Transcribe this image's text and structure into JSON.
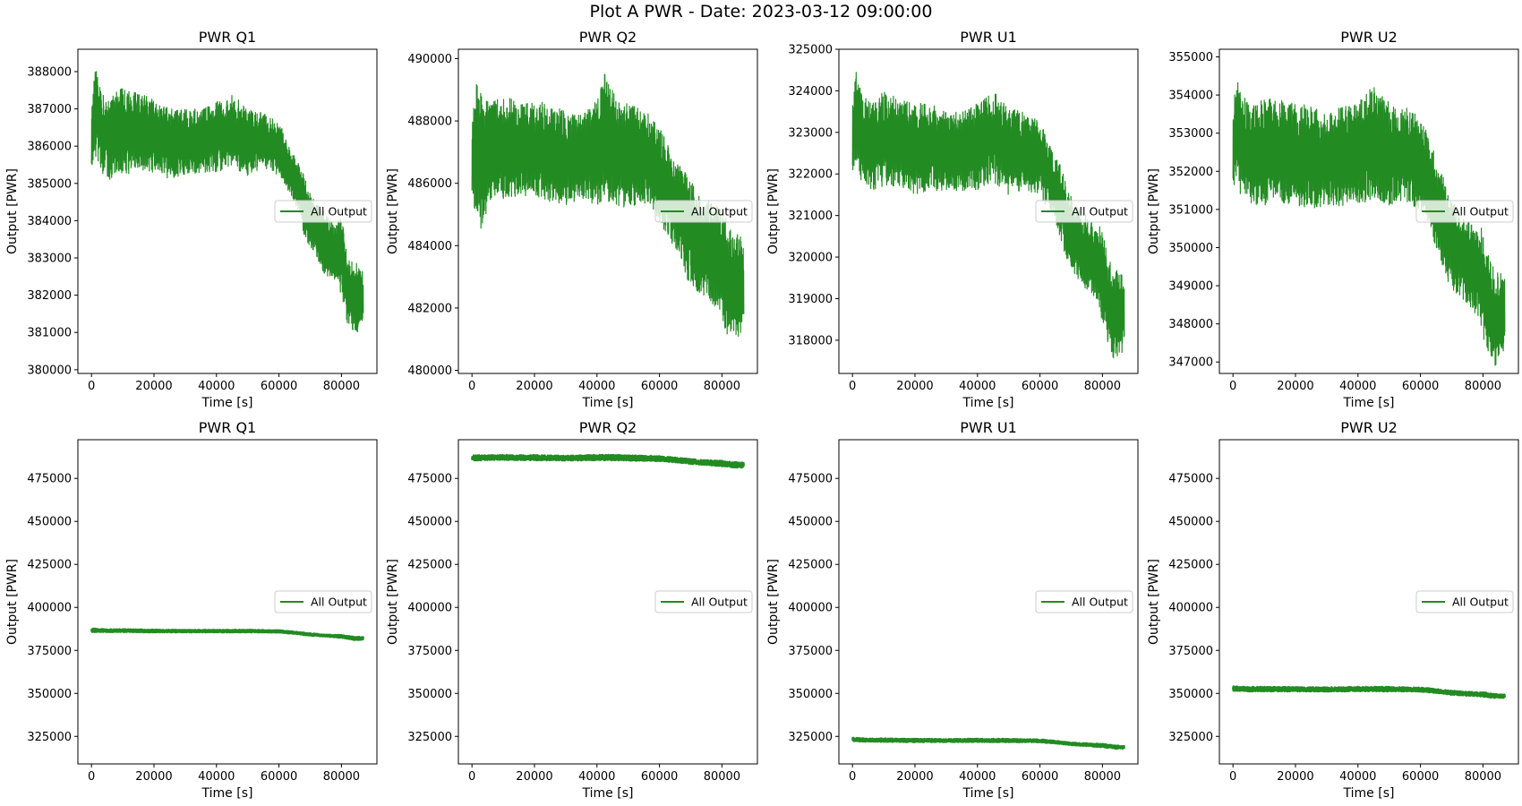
{
  "figure": {
    "suptitle": "Plot A PWR - Date: 2023-03-12 09:00:00",
    "line_color": "#228b22"
  },
  "chart_data": [
    {
      "type": "line",
      "title": "PWR Q1",
      "xlabel": "Time [s]",
      "ylabel": "Output [PWR]",
      "legend": {
        "label": "All Output",
        "placement": "center-right"
      },
      "xlim": [
        -4350,
        91350
      ],
      "ylim": [
        379900,
        388600
      ],
      "xticks": [
        0,
        20000,
        40000,
        60000,
        80000
      ],
      "yticks": [
        380000,
        381000,
        382000,
        383000,
        384000,
        385000,
        386000,
        387000,
        388000
      ],
      "series": [
        {
          "label": "All Output",
          "x": [
            0,
            1000,
            3000,
            6000,
            10000,
            15000,
            20000,
            25000,
            30000,
            35000,
            40000,
            45000,
            50000,
            55000,
            60000,
            63000,
            66000,
            69000,
            72000,
            75000,
            78000,
            80000,
            82000,
            84000,
            86000,
            87000
          ],
          "lower": [
            385400,
            385700,
            385300,
            385100,
            385200,
            385300,
            385300,
            385100,
            385200,
            385300,
            385300,
            385400,
            385200,
            385400,
            385200,
            384800,
            384300,
            383300,
            383000,
            382500,
            382400,
            382000,
            381200,
            381000,
            381000,
            381500
          ],
          "upper": [
            386900,
            388200,
            387500,
            387300,
            387600,
            387400,
            387300,
            387000,
            387000,
            387000,
            387200,
            387400,
            387000,
            386900,
            386700,
            386000,
            385600,
            385000,
            384500,
            384200,
            383900,
            384200,
            383000,
            382900,
            382800,
            382600
          ]
        }
      ]
    },
    {
      "type": "line",
      "title": "PWR Q2",
      "xlabel": "Time [s]",
      "ylabel": "Output [PWR]",
      "legend": {
        "label": "All Output",
        "placement": "center-right"
      },
      "xlim": [
        -4350,
        91350
      ],
      "ylim": [
        479900,
        490300
      ],
      "xticks": [
        0,
        20000,
        40000,
        60000,
        80000
      ],
      "yticks": [
        480000,
        482000,
        484000,
        486000,
        488000,
        490000
      ],
      "series": [
        {
          "label": "All Output",
          "x": [
            0,
            1000,
            3000,
            6000,
            10000,
            15000,
            20000,
            25000,
            30000,
            35000,
            40000,
            42000,
            45000,
            50000,
            55000,
            60000,
            63000,
            66000,
            69000,
            72000,
            75000,
            78000,
            80000,
            82000,
            84000,
            86000,
            87000
          ],
          "lower": [
            485500,
            485000,
            484500,
            485500,
            485500,
            485600,
            485600,
            485400,
            485300,
            485500,
            485300,
            485400,
            485400,
            485100,
            485400,
            484800,
            484200,
            483700,
            482900,
            482500,
            482300,
            482000,
            481600,
            481000,
            481000,
            481000,
            481600
          ],
          "upper": [
            488000,
            489300,
            489000,
            488600,
            488800,
            488700,
            488600,
            488600,
            488300,
            488200,
            488700,
            489600,
            489000,
            488600,
            488400,
            487800,
            487200,
            486600,
            486300,
            485700,
            485500,
            485300,
            485300,
            484600,
            484400,
            484300,
            484000
          ]
        }
      ]
    },
    {
      "type": "line",
      "title": "PWR U1",
      "xlabel": "Time [s]",
      "ylabel": "Output [PWR]",
      "legend": {
        "label": "All Output",
        "placement": "center-right"
      },
      "xlim": [
        -4350,
        91350
      ],
      "ylim": [
        317200,
        325000
      ],
      "xticks": [
        0,
        20000,
        40000,
        60000,
        80000
      ],
      "yticks": [
        318000,
        319000,
        320000,
        321000,
        322000,
        323000,
        324000,
        325000
      ],
      "series": [
        {
          "label": "All Output",
          "x": [
            0,
            1000,
            3000,
            6000,
            10000,
            15000,
            20000,
            25000,
            30000,
            35000,
            40000,
            45000,
            50000,
            55000,
            60000,
            63000,
            66000,
            69000,
            72000,
            75000,
            78000,
            80000,
            82000,
            84000,
            86000,
            87000
          ],
          "lower": [
            322000,
            322200,
            321800,
            321600,
            321700,
            321700,
            321500,
            321600,
            321600,
            321600,
            321600,
            321800,
            321500,
            321600,
            321500,
            321100,
            320600,
            319800,
            319500,
            319200,
            319000,
            318400,
            317800,
            317500,
            317600,
            317900
          ],
          "upper": [
            323600,
            324500,
            323900,
            323700,
            324000,
            323800,
            323700,
            323700,
            323500,
            323500,
            323700,
            324000,
            323600,
            323500,
            323300,
            322700,
            322300,
            321700,
            321200,
            321000,
            320700,
            320800,
            320000,
            319700,
            319700,
            319200
          ]
        }
      ]
    },
    {
      "type": "line",
      "title": "PWR U2",
      "xlabel": "Time [s]",
      "ylabel": "Output [PWR]",
      "legend": {
        "label": "All Output",
        "placement": "center-right"
      },
      "xlim": [
        -4350,
        91350
      ],
      "ylim": [
        346700,
        355200
      ],
      "xticks": [
        0,
        20000,
        40000,
        60000,
        80000
      ],
      "yticks": [
        347000,
        348000,
        349000,
        350000,
        351000,
        352000,
        353000,
        354000,
        355000
      ],
      "series": [
        {
          "label": "All Output",
          "x": [
            0,
            1000,
            3000,
            6000,
            10000,
            15000,
            20000,
            25000,
            30000,
            35000,
            40000,
            45000,
            50000,
            55000,
            60000,
            63000,
            66000,
            69000,
            72000,
            75000,
            78000,
            80000,
            82000,
            84000,
            86000,
            87000
          ],
          "lower": [
            351500,
            351700,
            351200,
            351100,
            351100,
            351200,
            351100,
            351000,
            351100,
            351100,
            351100,
            351300,
            351100,
            351200,
            351000,
            350400,
            349800,
            349000,
            348700,
            348400,
            348200,
            347600,
            347100,
            346900,
            347000,
            347400
          ],
          "upper": [
            353500,
            354600,
            354000,
            353700,
            353900,
            353900,
            353800,
            353700,
            353500,
            353700,
            353800,
            354300,
            353800,
            353700,
            353500,
            352800,
            352200,
            351400,
            351000,
            350800,
            350500,
            350600,
            349700,
            349400,
            349400,
            349200
          ]
        }
      ]
    },
    {
      "type": "line",
      "title": "PWR Q1",
      "xlabel": "Time [s]",
      "ylabel": "Output [PWR]",
      "legend": {
        "label": "All Output",
        "placement": "center-right"
      },
      "xlim": [
        -4350,
        91350
      ],
      "ylim": [
        309000,
        497500
      ],
      "xticks": [
        0,
        20000,
        40000,
        60000,
        80000
      ],
      "yticks": [
        325000,
        350000,
        375000,
        400000,
        425000,
        450000,
        475000
      ],
      "series": [
        {
          "label": "All Output",
          "x": [
            0,
            5000,
            10000,
            20000,
            30000,
            40000,
            50000,
            60000,
            65000,
            70000,
            75000,
            80000,
            84000,
            87000
          ],
          "lower": [
            385600,
            385600,
            385600,
            385400,
            385400,
            385400,
            385400,
            385300,
            384500,
            383500,
            382900,
            382300,
            381000,
            381000
          ],
          "upper": [
            387800,
            387300,
            387400,
            387100,
            387000,
            387000,
            387100,
            386800,
            386000,
            385000,
            384300,
            384000,
            383000,
            382800
          ]
        }
      ]
    },
    {
      "type": "line",
      "title": "PWR Q2",
      "xlabel": "Time [s]",
      "ylabel": "Output [PWR]",
      "legend": {
        "label": "All Output",
        "placement": "center-right"
      },
      "xlim": [
        -4350,
        91350
      ],
      "ylim": [
        309000,
        497500
      ],
      "xticks": [
        0,
        20000,
        40000,
        60000,
        80000
      ],
      "yticks": [
        325000,
        350000,
        375000,
        400000,
        425000,
        450000,
        475000
      ],
      "series": [
        {
          "label": "All Output",
          "x": [
            0,
            5000,
            10000,
            20000,
            30000,
            40000,
            50000,
            60000,
            65000,
            70000,
            75000,
            80000,
            84000,
            87000
          ],
          "lower": [
            485200,
            485600,
            485600,
            485500,
            485300,
            485500,
            485300,
            485000,
            484200,
            483400,
            482700,
            482000,
            481200,
            481300
          ],
          "upper": [
            488500,
            488600,
            488700,
            488600,
            488300,
            488800,
            488600,
            488000,
            487200,
            486300,
            485700,
            485300,
            484500,
            484200
          ]
        }
      ]
    },
    {
      "type": "line",
      "title": "PWR U1",
      "xlabel": "Time [s]",
      "ylabel": "Output [PWR]",
      "legend": {
        "label": "All Output",
        "placement": "center-right"
      },
      "xlim": [
        -4350,
        91350
      ],
      "ylim": [
        309000,
        497500
      ],
      "xticks": [
        0,
        20000,
        40000,
        60000,
        80000
      ],
      "yticks": [
        325000,
        350000,
        375000,
        400000,
        425000,
        450000,
        475000
      ],
      "series": [
        {
          "label": "All Output",
          "x": [
            0,
            5000,
            10000,
            20000,
            30000,
            40000,
            50000,
            60000,
            65000,
            70000,
            75000,
            80000,
            84000,
            87000
          ],
          "lower": [
            322200,
            321800,
            321800,
            321600,
            321600,
            321700,
            321600,
            321500,
            320800,
            319800,
            319300,
            318700,
            317800,
            317800
          ],
          "upper": [
            324300,
            323800,
            323900,
            323700,
            323500,
            323700,
            323600,
            323300,
            322500,
            321500,
            321000,
            320700,
            319800,
            319500
          ]
        }
      ]
    },
    {
      "type": "line",
      "title": "PWR U2",
      "xlabel": "Time [s]",
      "ylabel": "Output [PWR]",
      "legend": {
        "label": "All Output",
        "placement": "center-right"
      },
      "xlim": [
        -4350,
        91350
      ],
      "ylim": [
        309000,
        497500
      ],
      "xticks": [
        0,
        20000,
        40000,
        60000,
        80000
      ],
      "yticks": [
        325000,
        350000,
        375000,
        400000,
        425000,
        450000,
        475000
      ],
      "series": [
        {
          "label": "All Output",
          "x": [
            0,
            5000,
            10000,
            20000,
            30000,
            40000,
            50000,
            60000,
            65000,
            70000,
            75000,
            80000,
            84000,
            87000
          ],
          "lower": [
            351400,
            351100,
            351100,
            351100,
            351000,
            351200,
            351100,
            351000,
            350100,
            349100,
            348600,
            348000,
            347200,
            347300
          ],
          "upper": [
            354200,
            353800,
            353900,
            353700,
            353600,
            353900,
            353800,
            353500,
            352600,
            351600,
            351000,
            350700,
            349600,
            349400
          ]
        }
      ]
    }
  ]
}
